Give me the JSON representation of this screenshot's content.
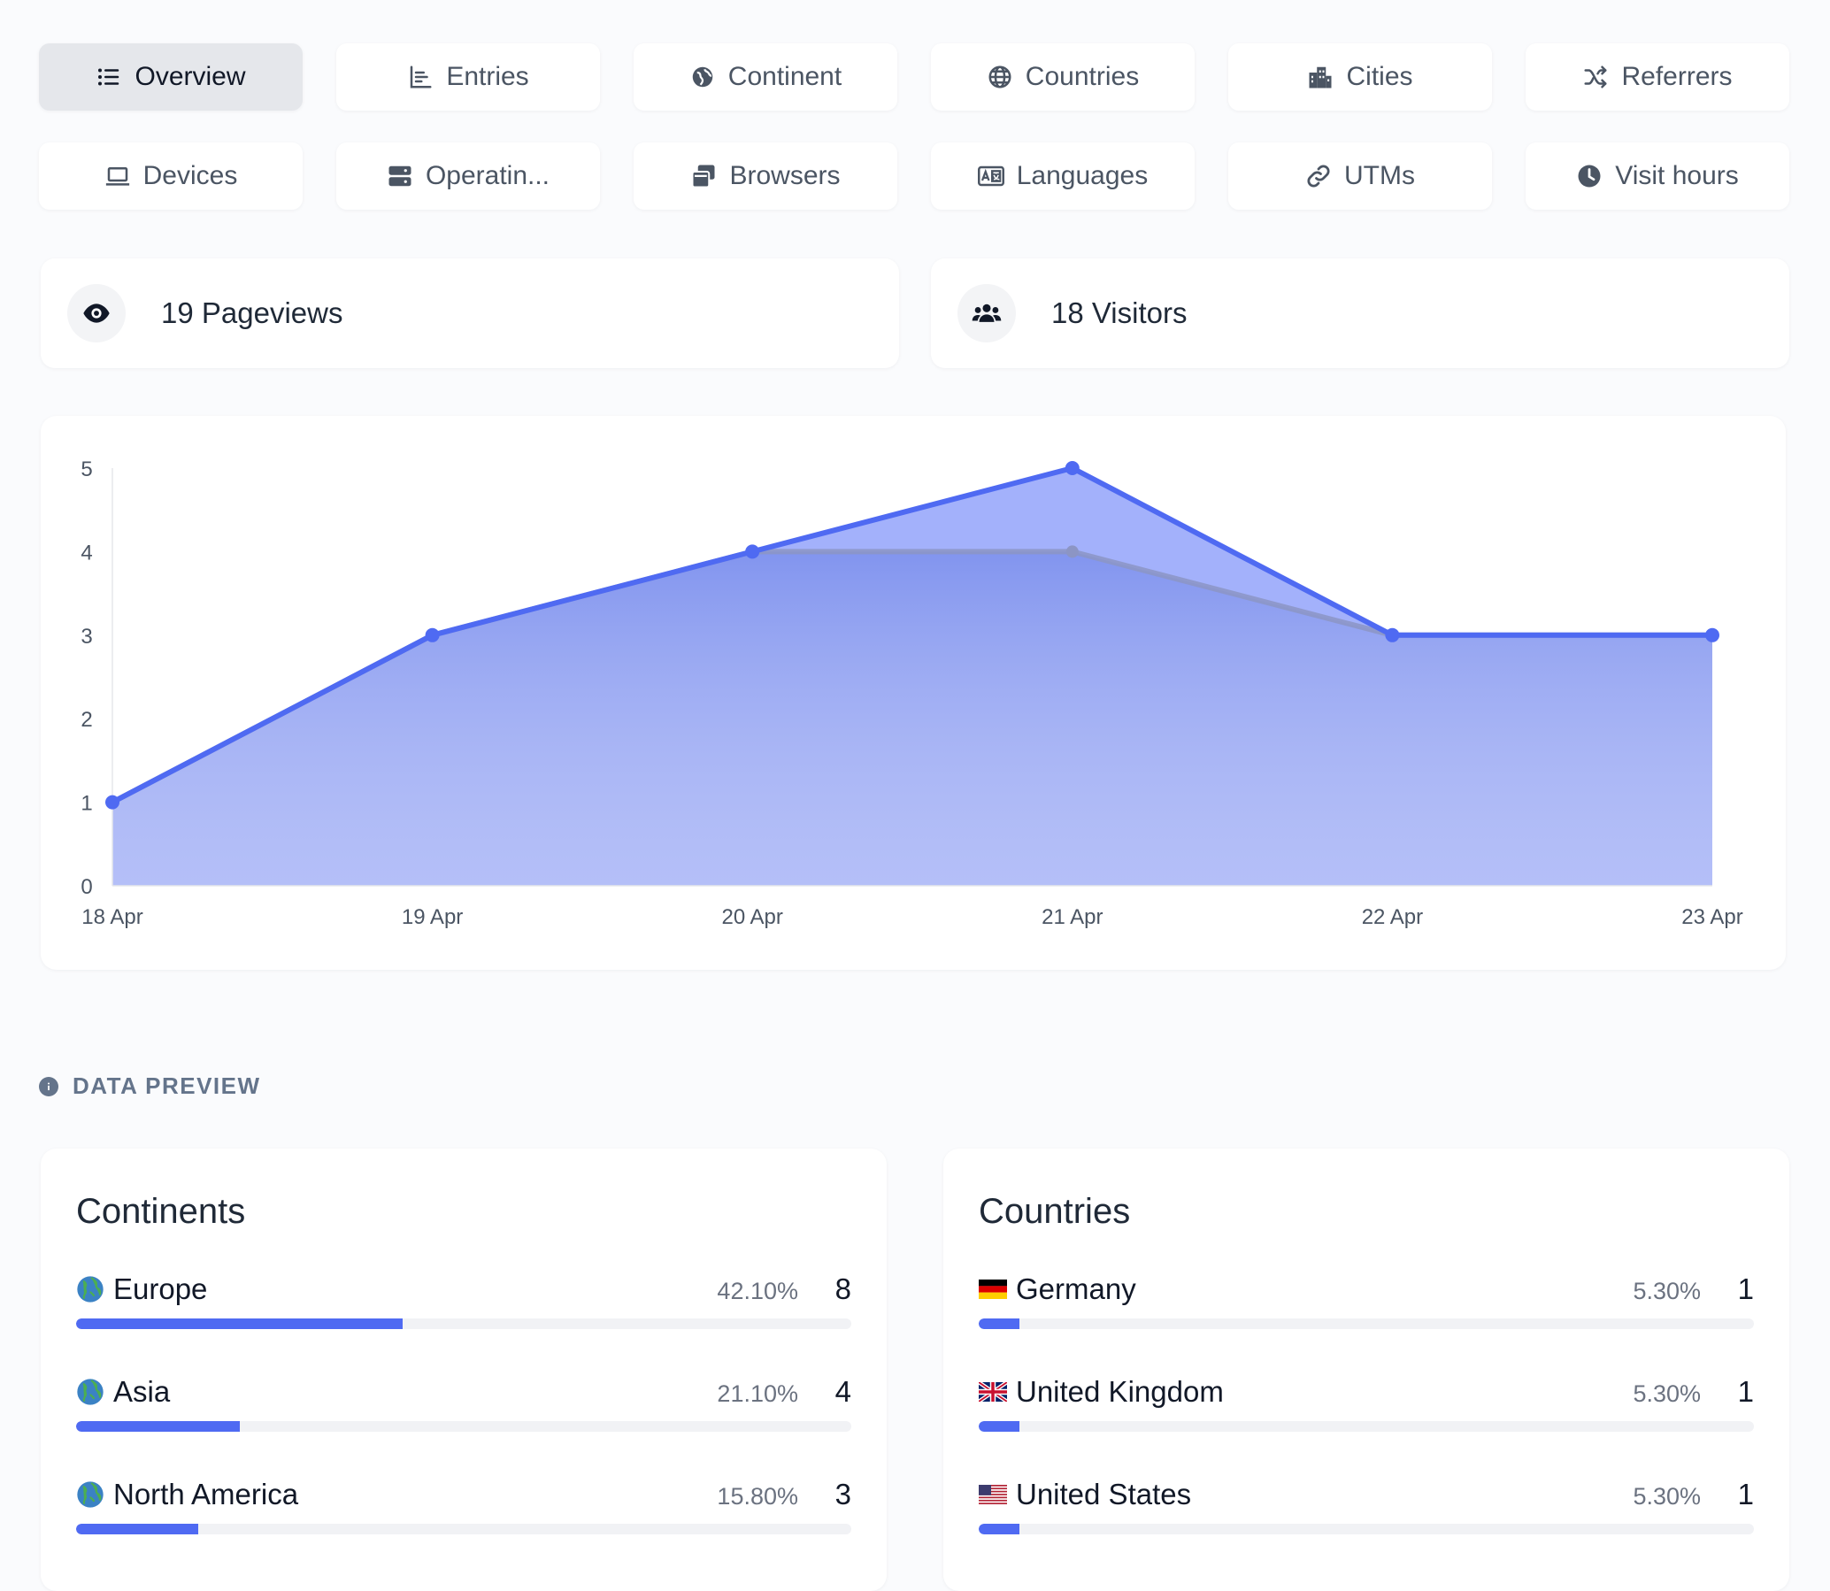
{
  "tabs": [
    {
      "label": "Overview",
      "icon": "list-icon",
      "active": true
    },
    {
      "label": "Entries",
      "icon": "bar-chart-icon"
    },
    {
      "label": "Continent",
      "icon": "earth-icon"
    },
    {
      "label": "Countries",
      "icon": "globe-icon"
    },
    {
      "label": "Cities",
      "icon": "city-icon"
    },
    {
      "label": "Referrers",
      "icon": "shuffle-icon"
    },
    {
      "label": "Devices",
      "icon": "laptop-icon"
    },
    {
      "label": "Operatin...",
      "icon": "server-icon"
    },
    {
      "label": "Browsers",
      "icon": "windows-stack-icon"
    },
    {
      "label": "Languages",
      "icon": "language-icon"
    },
    {
      "label": "UTMs",
      "icon": "link-icon"
    },
    {
      "label": "Visit hours",
      "icon": "clock-icon"
    }
  ],
  "stats": {
    "pageviews": "19 Pageviews",
    "visitors": "18 Visitors"
  },
  "chart_data": {
    "type": "area",
    "categories": [
      "18 Apr",
      "19 Apr",
      "20 Apr",
      "21 Apr",
      "22 Apr",
      "23 Apr"
    ],
    "series": [
      {
        "values": [
          1,
          3,
          4,
          5,
          3,
          3
        ],
        "color": "#4f6af2"
      },
      {
        "values": [
          1,
          3,
          4,
          4,
          3,
          3
        ],
        "color": "#8c95c4"
      }
    ],
    "y_ticks": [
      0,
      1,
      2,
      3,
      4,
      5
    ],
    "ylim": [
      0,
      5
    ],
    "grid": false
  },
  "data_preview": {
    "title": "DATA PREVIEW",
    "continents": {
      "title": "Continents",
      "rows": [
        {
          "name": "Europe",
          "icon": "globe-emoji",
          "pct": "42.10%",
          "count": "8",
          "share": 0.421
        },
        {
          "name": "Asia",
          "icon": "globe-emoji",
          "pct": "21.10%",
          "count": "4",
          "share": 0.211
        },
        {
          "name": "North America",
          "icon": "globe-emoji",
          "pct": "15.80%",
          "count": "3",
          "share": 0.158
        }
      ]
    },
    "countries": {
      "title": "Countries",
      "rows": [
        {
          "name": "Germany",
          "flag": "de",
          "pct": "5.30%",
          "count": "1",
          "share": 0.053
        },
        {
          "name": "United Kingdom",
          "flag": "gb",
          "pct": "5.30%",
          "count": "1",
          "share": 0.053
        },
        {
          "name": "United States",
          "flag": "us",
          "pct": "5.30%",
          "count": "1",
          "share": 0.053
        }
      ]
    }
  },
  "colors": {
    "accent": "#4f6af2",
    "muted": "#64748b"
  }
}
